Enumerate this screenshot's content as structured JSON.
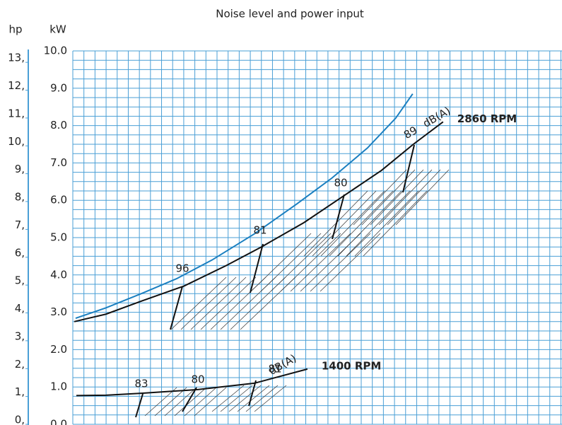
{
  "chart_data": {
    "type": "line",
    "title": "Noise level and power input",
    "ylabel": "kW",
    "y2label": "hp",
    "xlim": [
      0,
      44.1
    ],
    "xticks": [
      0,
      1,
      2,
      3,
      4,
      5,
      6,
      7,
      8,
      9,
      10,
      11,
      12,
      13,
      14,
      15,
      16,
      17,
      18,
      19,
      20,
      21,
      22,
      23,
      24,
      25,
      26,
      27,
      28,
      29,
      30,
      31,
      32,
      33,
      34,
      35,
      36,
      37,
      38,
      39,
      40,
      41,
      42,
      43,
      44
    ],
    "ylim": [
      0,
      10
    ],
    "yticks": [
      {
        "value": 0,
        "label": "0.0"
      },
      {
        "value": 1,
        "label": "1.0"
      },
      {
        "value": 2,
        "label": "2.0"
      },
      {
        "value": 3,
        "label": "3.0"
      },
      {
        "value": 4,
        "label": "4.0"
      },
      {
        "value": 5,
        "label": "5.0"
      },
      {
        "value": 6,
        "label": "6.0"
      },
      {
        "value": 7,
        "label": "7.0"
      },
      {
        "value": 8,
        "label": "8.0"
      },
      {
        "value": 9,
        "label": "9.0"
      },
      {
        "value": 10,
        "label": "10.0"
      }
    ],
    "y_minor_ticks": [
      0.25,
      0.5,
      0.75,
      1.25,
      1.5,
      1.75,
      2.25,
      2.5,
      2.75,
      3.25,
      3.5,
      3.75,
      4.25,
      4.5,
      4.75,
      5.25,
      5.5,
      5.75,
      6.25,
      6.5,
      6.75,
      7.25,
      7.5,
      7.75,
      8.25,
      8.5,
      8.75,
      9.25,
      9.5,
      9.75
    ],
    "y2lim": [
      0,
      13.41
    ],
    "y2ticks": [
      {
        "value": 0,
        "label": "0,"
      },
      {
        "value": 1,
        "label": "1,"
      },
      {
        "value": 2,
        "label": "2,"
      },
      {
        "value": 3,
        "label": "3,"
      },
      {
        "value": 4,
        "label": "4,"
      },
      {
        "value": 5,
        "label": "5,"
      },
      {
        "value": 6,
        "label": "6,"
      },
      {
        "value": 7,
        "label": "7,"
      },
      {
        "value": 8,
        "label": "8,"
      },
      {
        "value": 9,
        "label": "9,"
      },
      {
        "value": 10,
        "label": "10,"
      },
      {
        "value": 11,
        "label": "11,"
      },
      {
        "value": 12,
        "label": "12,"
      },
      {
        "value": 13,
        "label": "13,"
      }
    ],
    "grid": true,
    "grid_color": "#4a9fd6",
    "series": [
      {
        "color": "#1a7fc0",
        "x": [
          0.25,
          2.99,
          6.18,
          9.36,
          12.55,
          16.37,
          20.19,
          23.38,
          26.56,
          29.11,
          30.64
        ],
        "values": [
          2.84,
          3.12,
          3.5,
          3.9,
          4.4,
          5.1,
          5.9,
          6.6,
          7.4,
          8.2,
          8.85
        ]
      },
      {
        "name": "2860 RPM",
        "color": "#111111",
        "x": [
          0.13,
          2.99,
          6.18,
          10,
          13.82,
          17,
          20.83,
          24.33,
          27.83,
          30.7,
          33.38
        ],
        "values": [
          2.75,
          2.95,
          3.3,
          3.7,
          4.25,
          4.75,
          5.4,
          6.1,
          6.8,
          7.5,
          8.1
        ]
      },
      {
        "name": "1400 RPM",
        "color": "#111111",
        "x": [
          0.32,
          2.99,
          6.18,
          11.27,
          16.37,
          21.15
        ],
        "values": [
          0.77,
          0.78,
          0.83,
          0.93,
          1.1,
          1.48
        ]
      }
    ],
    "annotations": [
      "96",
      "81",
      "80",
      "89",
      "dB(A)",
      "83",
      "80",
      "81",
      "dB(A)"
    ]
  }
}
